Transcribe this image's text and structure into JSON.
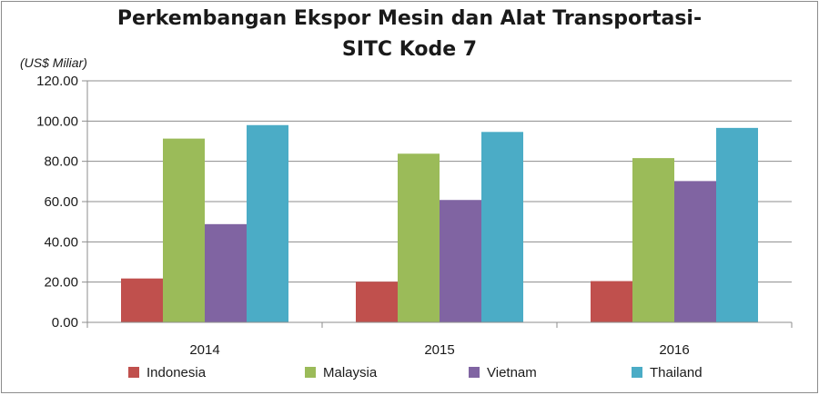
{
  "chart_data": {
    "type": "bar",
    "title_lines": [
      "Perkembangan Ekspor Mesin dan Alat Transportasi-",
      "SITC Kode 7"
    ],
    "ylabel": "(US$ Miliar)",
    "xlabel": "",
    "categories": [
      "2014",
      "2015",
      "2016"
    ],
    "ylim": [
      0,
      120
    ],
    "yticks": [
      "0.00",
      "20.00",
      "40.00",
      "60.00",
      "80.00",
      "100.00",
      "120.00"
    ],
    "grid": true,
    "legend_position": "bottom",
    "series": [
      {
        "name": "Indonesia",
        "color": "#c0504d",
        "values": [
          21.8,
          20.2,
          20.5
        ]
      },
      {
        "name": "Malaysia",
        "color": "#9bbb59",
        "values": [
          91.3,
          83.8,
          81.6
        ]
      },
      {
        "name": "Vietnam",
        "color": "#8064a2",
        "values": [
          48.8,
          60.8,
          70.2
        ]
      },
      {
        "name": "Thailand",
        "color": "#4bacc6",
        "values": [
          98.0,
          94.6,
          96.6
        ]
      }
    ]
  }
}
